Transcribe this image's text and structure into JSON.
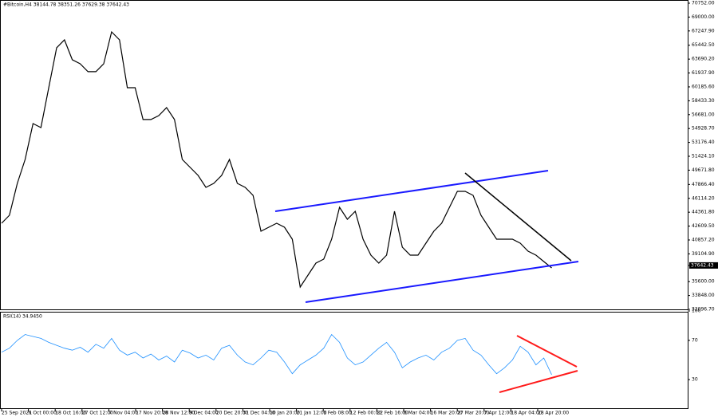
{
  "chart_data": [
    {
      "type": "line",
      "title": "#Bitcoin,H4  38144.78 38351.26 37629.38 37642.43",
      "color": "#000000",
      "values": [
        42970,
        43980,
        48000,
        51020,
        55550,
        55050,
        60080,
        65120,
        66120,
        63610,
        63100,
        62100,
        62100,
        63100,
        67130,
        66120,
        60080,
        60080,
        56060,
        56060,
        56560,
        57570,
        56060,
        51020,
        50020,
        49010,
        47500,
        48000,
        49010,
        51020,
        48000,
        47500,
        46490,
        41960,
        42470,
        42970,
        42470,
        40960,
        34920,
        36430,
        37940,
        38440,
        40960,
        44980,
        43470,
        44480,
        40960,
        38940,
        37940,
        38940,
        44480,
        39950,
        38940,
        38940,
        40450,
        41960,
        42970,
        44980,
        47000,
        47000,
        46490,
        43980,
        42470,
        40960,
        40960,
        40960,
        40450,
        39450,
        38940,
        38140,
        37330
      ],
      "last_price": 37642.43,
      "ylim": [
        32096.7,
        70752
      ],
      "yticks": [
        {
          "value": 70752,
          "label": "70752.00"
        },
        {
          "value": 69000,
          "label": "69000.00"
        },
        {
          "value": 67247.9,
          "label": "67247.90"
        },
        {
          "value": 65442.5,
          "label": "65442.50"
        },
        {
          "value": 63690.2,
          "label": "63690.20"
        },
        {
          "value": 61937.9,
          "label": "61937.90"
        },
        {
          "value": 60185.6,
          "label": "60185.60"
        },
        {
          "value": 58433.3,
          "label": "58433.30"
        },
        {
          "value": 56681,
          "label": "56681.00"
        },
        {
          "value": 54928.7,
          "label": "54928.70"
        },
        {
          "value": 53176.4,
          "label": "53176.40"
        },
        {
          "value": 51424.1,
          "label": "51424.10"
        },
        {
          "value": 49671.8,
          "label": "49671.80"
        },
        {
          "value": 47866.4,
          "label": "47866.40"
        },
        {
          "value": 46114.2,
          "label": "46114.20"
        },
        {
          "value": 44361.8,
          "label": "44361.80"
        },
        {
          "value": 42609.5,
          "label": "42609.50"
        },
        {
          "value": 40857.2,
          "label": "40857.20"
        },
        {
          "value": 39104.9,
          "label": "39104.90"
        },
        {
          "value": 35600,
          "label": "35600.00"
        },
        {
          "value": 33848,
          "label": "33848.00"
        },
        {
          "value": 32096.7,
          "label": "32096.70"
        }
      ],
      "xtick_labels": [
        "25 Sep 2021",
        "6 Oct 00:00",
        "18 Oct 16:00",
        "27 Oct 12:00",
        "7 Nov 04:00",
        "17 Nov 20:00",
        "28 Nov 12:00",
        "9 Dec 04:00",
        "20 Dec 20:00",
        "31 Dec 04:00",
        "10 Jan 20:00",
        "21 Jan 12:00",
        "1 Feb 08:00",
        "12 Feb 00:00",
        "22 Feb 16:00",
        "6 Mar 04:00",
        "16 Mar 20:00",
        "27 Mar 20:00",
        "7 Apr 12:00",
        "18 Apr 04:00",
        "28 Apr 20:00"
      ]
    },
    {
      "type": "line",
      "title": "RSI(14) 34.9450",
      "color": "#1e90ff",
      "values": [
        58,
        62,
        70,
        76,
        74,
        72,
        68,
        65,
        62,
        60,
        63,
        58,
        66,
        62,
        72,
        60,
        55,
        58,
        52,
        56,
        50,
        54,
        48,
        60,
        57,
        52,
        55,
        50,
        62,
        65,
        55,
        48,
        45,
        52,
        60,
        58,
        48,
        36,
        45,
        50,
        55,
        62,
        76,
        68,
        52,
        45,
        48,
        55,
        62,
        68,
        58,
        42,
        48,
        52,
        55,
        50,
        58,
        62,
        70,
        72,
        60,
        55,
        45,
        36,
        42,
        50,
        64,
        58,
        45,
        52,
        35
      ],
      "ylim": [
        0,
        100
      ],
      "yticks": [
        30,
        70,
        100
      ]
    }
  ]
}
